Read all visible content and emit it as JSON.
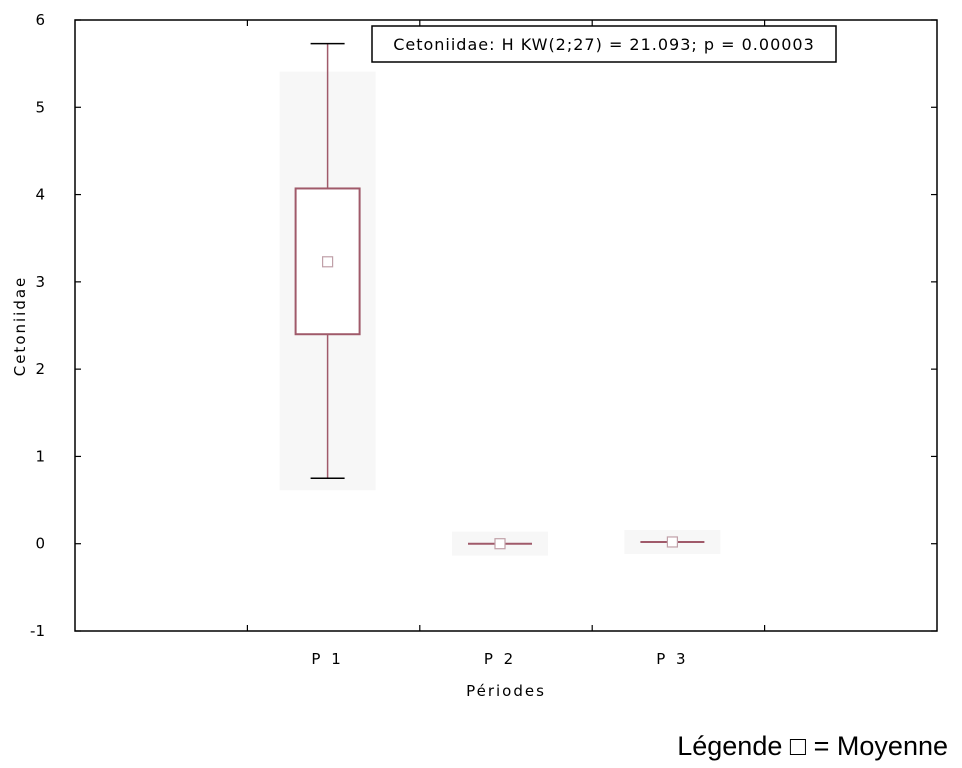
{
  "chart_data": {
    "type": "box",
    "title": "",
    "xlabel": "Périodes",
    "ylabel": "Cetoniidae",
    "ylim": [
      -1,
      6
    ],
    "yticks": [
      "-1",
      "0",
      "1",
      "2",
      "3",
      "4",
      "5",
      "6"
    ],
    "categories": [
      "P 1",
      "P 2",
      "P 3"
    ],
    "boxes": [
      {
        "category": "P 1",
        "min": 0.75,
        "q1": 2.4,
        "median": 3.25,
        "q3": 4.07,
        "max": 5.73,
        "mean": 3.23
      },
      {
        "category": "P 2",
        "min": 0.0,
        "q1": 0.0,
        "median": 0.0,
        "q3": 0.0,
        "max": 0.0,
        "mean": 0.0
      },
      {
        "category": "P 3",
        "min": 0.02,
        "q1": 0.02,
        "median": 0.02,
        "q3": 0.02,
        "max": 0.02,
        "mean": 0.02
      }
    ],
    "annotation": "Cetoniidae: H KW(2;27) = 21.093; p = 0.00003",
    "legend": "Légende □ = Moyenne",
    "grid": false,
    "colors": {
      "box": "#a05a6a",
      "mean_marker": "#c0a0a8",
      "axis": "#000000"
    }
  }
}
